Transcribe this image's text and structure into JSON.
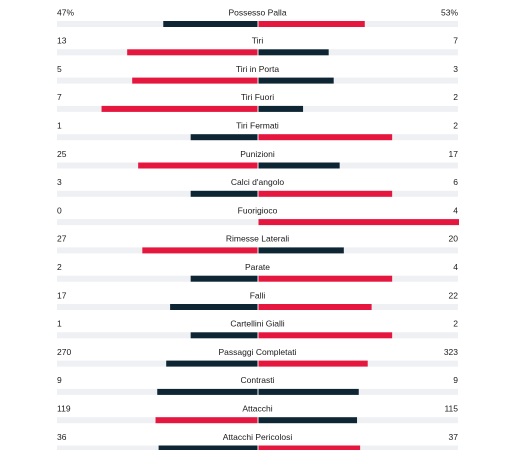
{
  "colors": {
    "leader": "#e5173f",
    "other": "#0e2634",
    "track": "#eef0f3"
  },
  "stats": [
    {
      "label": "Possesso Palla",
      "values": [
        47,
        53
      ],
      "value_labels": [
        "47%",
        "53%"
      ]
    },
    {
      "label": "Tiri",
      "values": [
        13,
        7
      ]
    },
    {
      "label": "Tiri in Porta",
      "values": [
        5,
        3
      ]
    },
    {
      "label": "Tiri Fuori",
      "values": [
        7,
        2
      ]
    },
    {
      "label": "Tiri Fermati",
      "values": [
        1,
        2
      ]
    },
    {
      "label": "Punizioni",
      "values": [
        25,
        17
      ]
    },
    {
      "label": "Calci d'angolo",
      "values": [
        3,
        6
      ]
    },
    {
      "label": "Fuorigioco",
      "values": [
        0,
        4
      ]
    },
    {
      "label": "Rimesse Laterali",
      "values": [
        27,
        20
      ]
    },
    {
      "label": "Parate",
      "values": [
        2,
        4
      ]
    },
    {
      "label": "Falli",
      "values": [
        17,
        22
      ]
    },
    {
      "label": "Cartellini Gialli",
      "values": [
        1,
        2
      ]
    },
    {
      "label": "Passaggi Completati",
      "values": [
        270,
        323
      ]
    },
    {
      "label": "Contrasti",
      "values": [
        9,
        9
      ]
    },
    {
      "label": "Attacchi",
      "values": [
        119,
        115
      ]
    },
    {
      "label": "Attacchi Pericolosi",
      "values": [
        36,
        37
      ]
    }
  ]
}
